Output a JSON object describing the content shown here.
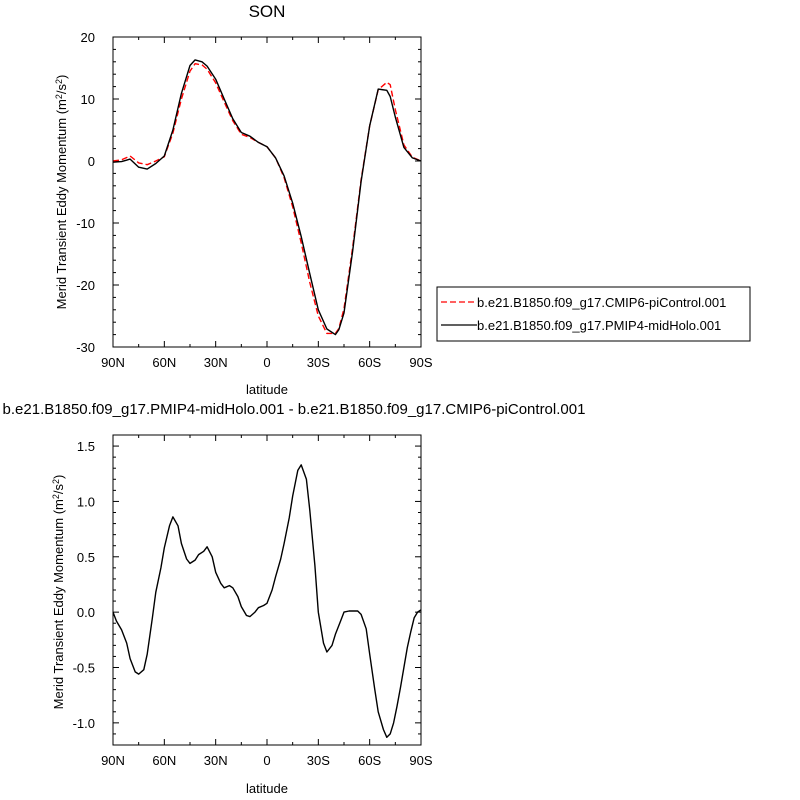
{
  "chart_data": [
    {
      "type": "line",
      "title": "SON",
      "xlabel": "latitude",
      "ylabel_main": "Merid Transient Eddy Momentum (m",
      "ylabel_mid": "/s",
      "ylabel_end": ")",
      "ylabel_sup1": "2",
      "ylabel_sup2": "2",
      "x_ticks": [
        {
          "value": -90,
          "label": "90N"
        },
        {
          "value": -60,
          "label": "60N"
        },
        {
          "value": -30,
          "label": "30N"
        },
        {
          "value": 0,
          "label": "0"
        },
        {
          "value": 30,
          "label": "30S"
        },
        {
          "value": 60,
          "label": "60S"
        },
        {
          "value": 90,
          "label": "90S"
        }
      ],
      "y_ticks": [
        {
          "value": 20,
          "label": "20"
        },
        {
          "value": 10,
          "label": "10"
        },
        {
          "value": 0,
          "label": "0"
        },
        {
          "value": -10,
          "label": "-10"
        },
        {
          "value": -20,
          "label": "-20"
        },
        {
          "value": -30,
          "label": "-30"
        }
      ],
      "xlim": [
        -90,
        90
      ],
      "ylim": [
        -30,
        20
      ],
      "legend_position": "right",
      "series": [
        {
          "name": "b.e21.B1850.f09_g17.CMIP6-piControl.001",
          "color": "#ff0000",
          "dash": "dashed",
          "x": [
            -90,
            -85,
            -80,
            -75,
            -70,
            -65,
            -60,
            -55,
            -50,
            -45,
            -42,
            -38,
            -35,
            -30,
            -25,
            -20,
            -15,
            -10,
            -5,
            0,
            5,
            10,
            15,
            20,
            25,
            30,
            35,
            40,
            42,
            45,
            50,
            55,
            60,
            65,
            70,
            72,
            75,
            80,
            85,
            90
          ],
          "y": [
            0.0,
            0.2,
            0.8,
            -0.3,
            -0.6,
            0.0,
            0.7,
            4.5,
            10.0,
            14.5,
            15.7,
            15.5,
            14.8,
            12.6,
            9.5,
            6.5,
            4.3,
            3.8,
            3.0,
            2.3,
            0.5,
            -2.7,
            -7.4,
            -13.2,
            -19.6,
            -25.0,
            -27.8,
            -27.8,
            -27.0,
            -23.8,
            -14.0,
            -3.0,
            5.7,
            11.5,
            12.7,
            12.3,
            8.3,
            2.6,
            0.6,
            0.0
          ]
        },
        {
          "name": "b.e21.B1850.f09_g17.PMIP4-midHolo.001",
          "color": "#000000",
          "dash": "solid",
          "x": [
            -90,
            -85,
            -80,
            -75,
            -70,
            -65,
            -60,
            -55,
            -50,
            -45,
            -42,
            -38,
            -35,
            -30,
            -25,
            -20,
            -15,
            -10,
            -5,
            0,
            5,
            10,
            15,
            20,
            25,
            30,
            35,
            40,
            42,
            45,
            50,
            55,
            60,
            65,
            70,
            72,
            75,
            80,
            85,
            90
          ],
          "y": [
            -0.2,
            -0.1,
            0.3,
            -1.0,
            -1.3,
            -0.4,
            0.8,
            5.0,
            10.9,
            15.4,
            16.3,
            16.0,
            15.3,
            13.2,
            10.0,
            6.8,
            4.6,
            4.0,
            3.0,
            2.3,
            0.5,
            -2.4,
            -6.8,
            -12.2,
            -18.2,
            -24.0,
            -27.1,
            -28.0,
            -27.2,
            -24.5,
            -14.6,
            -3.3,
            5.7,
            11.6,
            11.4,
            10.4,
            7.1,
            2.2,
            0.5,
            0.0
          ]
        }
      ]
    },
    {
      "type": "line",
      "title": "b.e21.B1850.f09_g17.PMIP4-midHolo.001 - b.e21.B1850.f09_g17.CMIP6-piControl.001",
      "xlabel": "latitude",
      "ylabel_main": "Merid Transient Eddy Momentum (m",
      "ylabel_mid": "/s",
      "ylabel_end": ")",
      "ylabel_sup1": "2",
      "ylabel_sup2": "2",
      "x_ticks": [
        {
          "value": -90,
          "label": "90N"
        },
        {
          "value": -60,
          "label": "60N"
        },
        {
          "value": -30,
          "label": "30N"
        },
        {
          "value": 0,
          "label": "0"
        },
        {
          "value": 30,
          "label": "30S"
        },
        {
          "value": 60,
          "label": "60S"
        },
        {
          "value": 90,
          "label": "90S"
        }
      ],
      "y_ticks": [
        {
          "value": 1.5,
          "label": "1.5"
        },
        {
          "value": 1.0,
          "label": "1.0"
        },
        {
          "value": 0.5,
          "label": "0.5"
        },
        {
          "value": 0.0,
          "label": "0.0"
        },
        {
          "value": -0.5,
          "label": "-0.5"
        },
        {
          "value": -1.0,
          "label": "-1.0"
        }
      ],
      "xlim": [
        -90,
        90
      ],
      "ylim": [
        -1.2,
        1.6
      ],
      "series": [
        {
          "color": "#000000",
          "dash": "solid",
          "x": [
            -90,
            -88,
            -85,
            -82,
            -80,
            -77,
            -75,
            -72,
            -70,
            -67,
            -65,
            -62,
            -60,
            -57,
            -55,
            -52,
            -50,
            -47,
            -45,
            -42,
            -40,
            -37,
            -35,
            -32,
            -30,
            -27,
            -25,
            -22,
            -20,
            -17,
            -15,
            -12,
            -10,
            -7,
            -5,
            -2,
            0,
            3,
            5,
            8,
            10,
            13,
            15,
            18,
            20,
            23,
            25,
            28,
            30,
            33,
            35,
            38,
            40,
            43,
            45,
            48,
            50,
            53,
            55,
            58,
            60,
            63,
            65,
            68,
            70,
            72,
            74,
            76,
            78,
            80,
            82,
            84,
            86,
            88,
            90
          ],
          "y": [
            0.0,
            -0.08,
            -0.16,
            -0.28,
            -0.42,
            -0.54,
            -0.56,
            -0.52,
            -0.38,
            -0.05,
            0.18,
            0.4,
            0.58,
            0.78,
            0.86,
            0.78,
            0.62,
            0.48,
            0.44,
            0.47,
            0.52,
            0.55,
            0.59,
            0.5,
            0.36,
            0.26,
            0.22,
            0.24,
            0.22,
            0.14,
            0.05,
            -0.03,
            -0.04,
            0.0,
            0.04,
            0.06,
            0.08,
            0.2,
            0.32,
            0.48,
            0.62,
            0.85,
            1.05,
            1.28,
            1.33,
            1.2,
            0.92,
            0.42,
            0.0,
            -0.28,
            -0.36,
            -0.3,
            -0.2,
            -0.08,
            0.0,
            0.01,
            0.01,
            0.01,
            -0.02,
            -0.15,
            -0.38,
            -0.7,
            -0.9,
            -1.06,
            -1.13,
            -1.1,
            -1.0,
            -0.85,
            -0.68,
            -0.5,
            -0.32,
            -0.18,
            -0.05,
            0.0,
            0.02
          ]
        }
      ]
    }
  ]
}
